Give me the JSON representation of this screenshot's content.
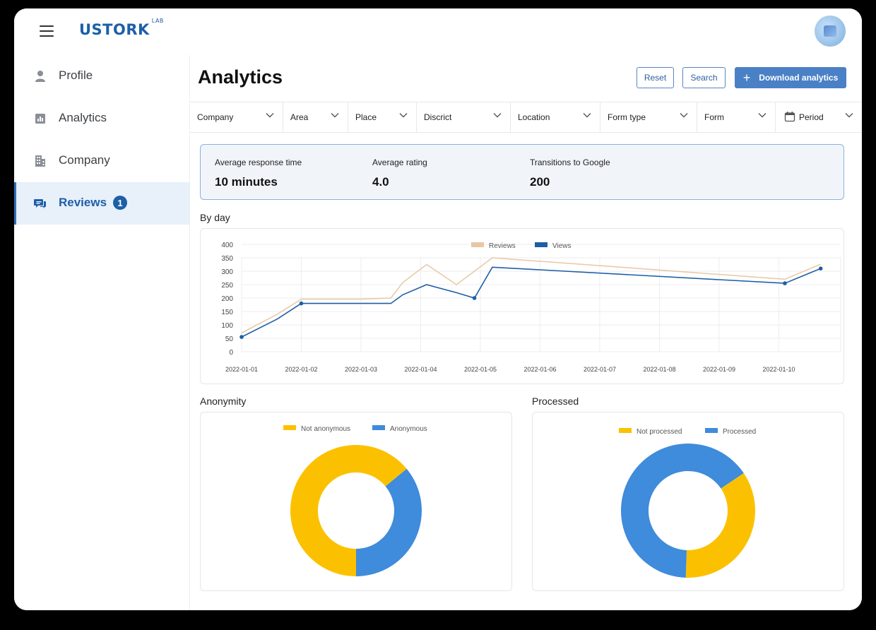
{
  "header": {
    "logo_text": "USTORK",
    "logo_sup": "LAB"
  },
  "sidebar": {
    "items": [
      {
        "label": "Profile",
        "icon": "user-icon"
      },
      {
        "label": "Analytics",
        "icon": "bar-chart-icon"
      },
      {
        "label": "Company",
        "icon": "building-icon"
      },
      {
        "label": "Reviews",
        "icon": "chat-bubbles-icon",
        "badge": "1",
        "active": true
      }
    ]
  },
  "main": {
    "title": "Analytics",
    "buttons": {
      "reset": "Reset",
      "search": "Search",
      "download": "Download analytics"
    },
    "filters": [
      "Company",
      "Area",
      "Place",
      "Discrict",
      "Location",
      "Form type",
      "Form",
      "Period"
    ],
    "stats": [
      {
        "label": "Average response time",
        "value": "10 minutes"
      },
      {
        "label": "Average rating",
        "value": "4.0"
      },
      {
        "label": "Transitions to Google",
        "value": "200"
      }
    ],
    "sections": {
      "by_day": "By day",
      "anonymity": "Anonymity",
      "processed": "Processed"
    }
  },
  "colors": {
    "brand": "#1d5fa8",
    "reviews_line": "#e8c7a4",
    "views_line": "#1f5ea6",
    "yellow": "#fbc100",
    "blue": "#3f8bdc"
  },
  "chart_data": [
    {
      "type": "line",
      "title": "",
      "x": [
        "2022-01-01",
        "2022-01-02",
        "2022-01-03",
        "2022-01-04",
        "2022-01-05",
        "2022-01-06",
        "2022-01-07",
        "2022-01-08",
        "2022-01-09",
        "2022-01-10"
      ],
      "ylim": [
        0,
        400
      ],
      "yticks": [
        0,
        50,
        100,
        150,
        200,
        250,
        300,
        350,
        400
      ],
      "grid": true,
      "legend": "top-center",
      "series": [
        {
          "name": "Reviews",
          "points": [
            [
              0,
              70
            ],
            [
              0.6,
              140
            ],
            [
              1.0,
              196
            ],
            [
              2.0,
              196
            ],
            [
              2.5,
              200
            ],
            [
              2.7,
              258
            ],
            [
              3.1,
              325
            ],
            [
              3.6,
              250
            ],
            [
              3.9,
              300
            ],
            [
              4.2,
              350
            ],
            [
              9.1,
              270
            ],
            [
              9.7,
              326
            ]
          ]
        },
        {
          "name": "Views",
          "points": [
            [
              0,
              55
            ],
            [
              0.6,
              122
            ],
            [
              1.0,
              180
            ],
            [
              2.0,
              180
            ],
            [
              2.5,
              180
            ],
            [
              2.7,
              212
            ],
            [
              3.1,
              250
            ],
            [
              3.6,
              220
            ],
            [
              3.9,
              200
            ],
            [
              4.2,
              315
            ],
            [
              9.1,
              255
            ],
            [
              9.7,
              310
            ]
          ]
        }
      ]
    },
    {
      "type": "pie",
      "title": "Anonymity",
      "legend": "top-center",
      "series": [
        {
          "name": "Not anonymous",
          "value": 64
        },
        {
          "name": "Anonymous",
          "value": 36
        }
      ]
    },
    {
      "type": "pie",
      "title": "Processed",
      "legend": "top-center",
      "series": [
        {
          "name": "Not processed",
          "value": 35
        },
        {
          "name": "Processed",
          "value": 65
        }
      ]
    }
  ]
}
